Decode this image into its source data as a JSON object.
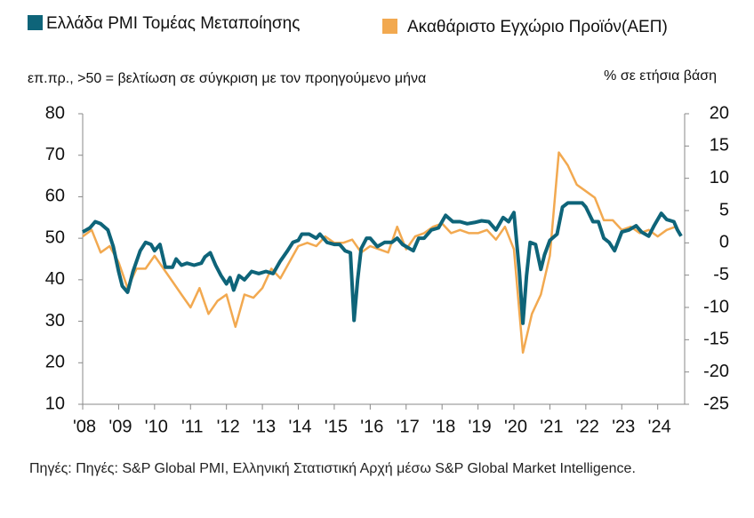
{
  "chart_data": {
    "type": "line",
    "series": [
      {
        "name": "Ελλάδα PMI Τομέας Μεταποίησης",
        "color": "#0e6479",
        "axis": "y",
        "x": [
          2008.0,
          2008.2,
          2008.35,
          2008.5,
          2008.7,
          2008.85,
          2009.0,
          2009.1,
          2009.25,
          2009.4,
          2009.6,
          2009.75,
          2009.9,
          2010.0,
          2010.15,
          2010.3,
          2010.5,
          2010.6,
          2010.75,
          2010.9,
          2011.1,
          2011.3,
          2011.4,
          2011.55,
          2011.7,
          2011.85,
          2012.0,
          2012.1,
          2012.2,
          2012.35,
          2012.5,
          2012.7,
          2012.9,
          2013.1,
          2013.3,
          2013.5,
          2013.7,
          2013.85,
          2014.0,
          2014.1,
          2014.3,
          2014.5,
          2014.6,
          2014.8,
          2015.0,
          2015.15,
          2015.3,
          2015.45,
          2015.55,
          2015.65,
          2015.75,
          2015.9,
          2016.0,
          2016.2,
          2016.4,
          2016.6,
          2016.75,
          2016.9,
          2017.0,
          2017.2,
          2017.35,
          2017.5,
          2017.7,
          2017.9,
          2018.1,
          2018.3,
          2018.5,
          2018.7,
          2018.9,
          2019.1,
          2019.3,
          2019.5,
          2019.7,
          2019.85,
          2020.0,
          2020.15,
          2020.25,
          2020.35,
          2020.45,
          2020.6,
          2020.75,
          2020.85,
          2021.0,
          2021.2,
          2021.35,
          2021.5,
          2021.7,
          2021.9,
          2022.0,
          2022.2,
          2022.35,
          2022.5,
          2022.65,
          2022.8,
          2023.0,
          2023.2,
          2023.4,
          2023.55,
          2023.75,
          2023.9,
          2024.1,
          2024.25,
          2024.45,
          2024.55,
          2024.65
        ],
        "values": [
          51.5,
          52.5,
          54,
          53.5,
          52,
          48,
          42,
          38.5,
          37,
          42,
          47,
          49,
          48.5,
          47,
          48.5,
          43,
          43,
          45,
          43.5,
          44,
          43.5,
          44,
          45.5,
          46.5,
          43.5,
          41,
          39,
          40.5,
          37.5,
          41,
          40,
          42,
          41.5,
          42,
          41.5,
          44.5,
          47,
          49,
          49.5,
          51,
          51,
          50,
          51,
          49,
          48.5,
          48.5,
          47,
          46.5,
          30.2,
          40,
          47.5,
          50,
          50,
          48,
          49,
          49,
          50,
          48.5,
          48,
          47,
          50,
          50,
          52,
          52.5,
          55.5,
          54,
          54,
          53.5,
          53.8,
          54.2,
          54,
          52,
          55,
          54,
          56.2,
          42,
          29.5,
          41,
          49,
          48.5,
          42.5,
          46,
          49.5,
          51,
          57.5,
          58.5,
          58.5,
          58.5,
          57.5,
          54,
          54,
          50,
          49,
          47,
          51.5,
          52,
          53,
          51.5,
          50.5,
          53,
          56,
          54.5,
          54,
          52,
          50.5
        ]
      },
      {
        "name": "Ακαθάριστο Εγχώριο Προϊόν(ΑΕΠ)",
        "color": "#f2a950",
        "axis": "y2",
        "x": [
          2008.0,
          2008.25,
          2008.5,
          2008.75,
          2009.0,
          2009.25,
          2009.5,
          2009.75,
          2010.0,
          2010.25,
          2010.5,
          2010.75,
          2011.0,
          2011.25,
          2011.5,
          2011.75,
          2012.0,
          2012.25,
          2012.5,
          2012.75,
          2013.0,
          2013.25,
          2013.5,
          2013.75,
          2014.0,
          2014.25,
          2014.5,
          2014.75,
          2015.0,
          2015.25,
          2015.5,
          2015.75,
          2016.0,
          2016.25,
          2016.5,
          2016.75,
          2017.0,
          2017.25,
          2017.5,
          2017.75,
          2018.0,
          2018.25,
          2018.5,
          2018.75,
          2019.0,
          2019.25,
          2019.5,
          2019.75,
          2020.0,
          2020.25,
          2020.5,
          2020.75,
          2021.0,
          2021.25,
          2021.5,
          2021.75,
          2022.0,
          2022.25,
          2022.5,
          2022.75,
          2023.0,
          2023.25,
          2023.5,
          2023.75,
          2024.0,
          2024.25,
          2024.5
        ],
        "values": [
          1,
          2,
          -1.5,
          -0.5,
          -3,
          -7,
          -4,
          -4,
          -2,
          -4,
          -6,
          -8,
          -10,
          -7,
          -11,
          -9,
          -8,
          -13,
          -8,
          -8.5,
          -7,
          -4,
          -5.5,
          -3,
          -0.5,
          0,
          -0.5,
          1,
          0,
          0,
          0.5,
          -1.5,
          -0.5,
          -1,
          -1.5,
          2.5,
          -1,
          1,
          1.5,
          2.5,
          3,
          1.5,
          2,
          1.5,
          1.5,
          2,
          0.5,
          2.5,
          -1,
          -17,
          -11,
          -8,
          -2,
          14,
          12,
          9,
          8,
          7,
          3.5,
          3.5,
          2,
          2.5,
          1.5,
          2,
          1,
          2,
          2.5
        ]
      }
    ],
    "y_label": "επ.πρ., >50 = βελτίωση σε σύγκριση με τον προηγούμενο μήνα",
    "y2_label": "% σε ετήσια βάση",
    "xlim": [
      2008,
      2024.75
    ],
    "xticks": [
      {
        "value": 2008,
        "label": "'08"
      },
      {
        "value": 2009,
        "label": "'09"
      },
      {
        "value": 2010,
        "label": "'10"
      },
      {
        "value": 2011,
        "label": "'11"
      },
      {
        "value": 2012,
        "label": "'12"
      },
      {
        "value": 2013,
        "label": "'13"
      },
      {
        "value": 2014,
        "label": "'14"
      },
      {
        "value": 2015,
        "label": "'15"
      },
      {
        "value": 2016,
        "label": "'16"
      },
      {
        "value": 2017,
        "label": "'17"
      },
      {
        "value": 2018,
        "label": "'18"
      },
      {
        "value": 2019,
        "label": "'19"
      },
      {
        "value": 2020,
        "label": "'20"
      },
      {
        "value": 2021,
        "label": "'21"
      },
      {
        "value": 2022,
        "label": "'22"
      },
      {
        "value": 2023,
        "label": "'23"
      },
      {
        "value": 2024,
        "label": "'24"
      }
    ],
    "ylim": [
      10,
      80
    ],
    "yticks": [
      10,
      20,
      30,
      40,
      50,
      60,
      70,
      80
    ],
    "y2lim": [
      -25,
      20
    ],
    "y2ticks": [
      -25,
      -20,
      -15,
      -10,
      -5,
      0,
      5,
      10,
      15,
      20
    ],
    "source": "Πηγές: Πηγές: S&P Global PMI, Ελληνική Στατιστική Αρχή μέσω S&P Global Market Intelligence."
  }
}
